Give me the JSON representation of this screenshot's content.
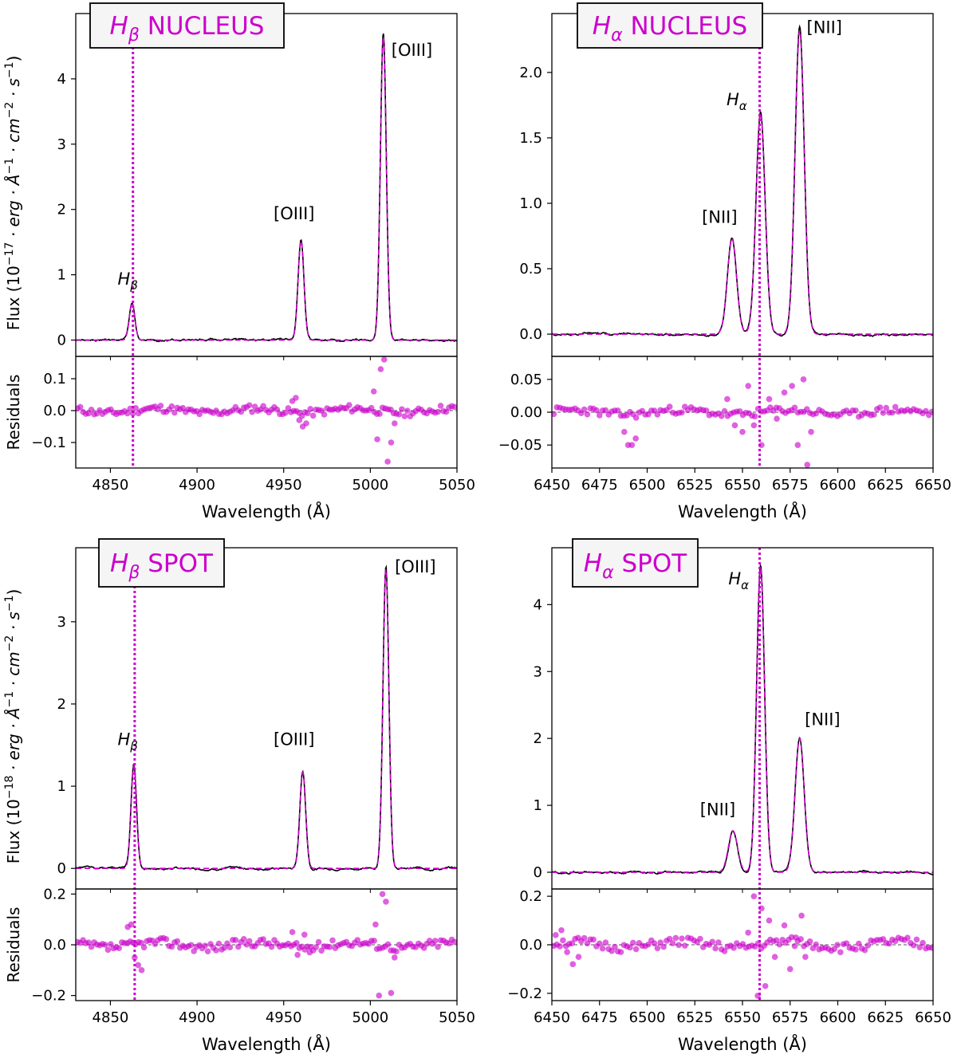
{
  "chart_data": [
    {
      "type": "line",
      "id": "hb-nucleus",
      "box_label": {
        "line": "H",
        "sub": "β",
        "rest": " NUCLEUS"
      },
      "ylabel": {
        "prefix": "Flux (10",
        "exp1": "−17",
        "mid": " · erg · Å",
        "exp2": "−1",
        "mid2": " · cm",
        "exp3": "−2",
        "mid3": " · s",
        "exp4": "−1",
        "suffix": ")"
      },
      "xlabel": "Wavelength (Å)",
      "residual_ylabel": "Residuals",
      "xlim": [
        4830,
        5050
      ],
      "ylim": [
        -0.25,
        5.0
      ],
      "res_ylim": [
        -0.18,
        0.17
      ],
      "xticks": [
        4850,
        4900,
        4950,
        5000,
        5050
      ],
      "yticks": [
        0,
        1,
        2,
        3,
        4
      ],
      "res_yticks": [
        -0.1,
        0.0,
        0.1
      ],
      "ref_line": 4863,
      "lines": [
        {
          "center": 4862.5,
          "amp": 0.57,
          "sigma": 1.6
        },
        {
          "center": 4960,
          "amp": 1.52,
          "sigma": 1.7
        },
        {
          "center": 5007.5,
          "amp": 4.65,
          "sigma": 1.7
        }
      ],
      "labels": [
        {
          "text": "H",
          "sub": "β",
          "x": 4860,
          "y": 0.85
        },
        {
          "text": "[OIII]",
          "sub": "",
          "x": 4956,
          "y": 1.85
        },
        {
          "text": "[OIII]",
          "sub": "",
          "x": 5024,
          "y": 4.35
        }
      ],
      "residuals": {
        "seed": 11,
        "noise": 0.012,
        "spikes": [
          [
            4955,
            0.03
          ],
          [
            4957,
            0.04
          ],
          [
            4959,
            -0.03
          ],
          [
            4961,
            -0.05
          ],
          [
            4963,
            -0.04
          ],
          [
            5002,
            0.06
          ],
          [
            5004,
            -0.09
          ],
          [
            5006,
            0.13
          ],
          [
            5008,
            0.16
          ],
          [
            5010,
            -0.16
          ],
          [
            5012,
            -0.1
          ],
          [
            5014,
            -0.04
          ]
        ]
      }
    },
    {
      "type": "line",
      "id": "ha-nucleus",
      "box_label": {
        "line": "H",
        "sub": "α",
        "rest": " NUCLEUS"
      },
      "ylabel": null,
      "xlabel": "Wavelength (Å)",
      "residual_ylabel": "",
      "xlim": [
        6450,
        6650
      ],
      "ylim": [
        -0.17,
        2.45
      ],
      "res_ylim": [
        -0.085,
        0.085
      ],
      "xticks": [
        6450,
        6475,
        6500,
        6525,
        6550,
        6575,
        6600,
        6625,
        6650
      ],
      "yticks": [
        0.0,
        0.5,
        1.0,
        1.5,
        2.0
      ],
      "res_yticks": [
        -0.05,
        0.0,
        0.05
      ],
      "ref_line": 6559,
      "lines": [
        {
          "center": 6544.5,
          "amp": 0.73,
          "sigma": 2.4
        },
        {
          "center": 6559.5,
          "amp": 1.68,
          "sigma": 2.4
        },
        {
          "center": 6580,
          "amp": 2.32,
          "sigma": 2.4
        }
      ],
      "labels": [
        {
          "text": "[NII]",
          "sub": "",
          "x": 6538,
          "y": 0.85
        },
        {
          "text": "H",
          "sub": "α",
          "x": 6547,
          "y": 1.75
        },
        {
          "text": "[NII]",
          "sub": "",
          "x": 6593,
          "y": 2.3
        }
      ],
      "residuals": {
        "seed": 23,
        "noise": 0.006,
        "spikes": [
          [
            6488,
            -0.03
          ],
          [
            6490,
            -0.05
          ],
          [
            6492,
            -0.05
          ],
          [
            6494,
            -0.04
          ],
          [
            6542,
            0.02
          ],
          [
            6546,
            -0.02
          ],
          [
            6550,
            -0.03
          ],
          [
            6553,
            0.04
          ],
          [
            6556,
            -0.02
          ],
          [
            6560,
            -0.05
          ],
          [
            6564,
            0.02
          ],
          [
            6568,
            -0.01
          ],
          [
            6572,
            0.03
          ],
          [
            6576,
            0.04
          ],
          [
            6579,
            -0.05
          ],
          [
            6582,
            0.05
          ],
          [
            6584,
            -0.08
          ],
          [
            6586,
            -0.03
          ]
        ]
      }
    },
    {
      "type": "line",
      "id": "hb-spot",
      "box_label": {
        "line": "H",
        "sub": "β",
        "rest": " SPOT"
      },
      "ylabel": {
        "prefix": "Flux (10",
        "exp1": "−18",
        "mid": " · erg · Å",
        "exp2": "−1",
        "mid2": " · cm",
        "exp3": "−2",
        "mid3": " · s",
        "exp4": "−1",
        "suffix": ")"
      },
      "xlabel": "Wavelength (Å)",
      "residual_ylabel": "Residuals",
      "xlim": [
        4830,
        5050
      ],
      "ylim": [
        -0.25,
        3.9
      ],
      "res_ylim": [
        -0.22,
        0.22
      ],
      "xticks": [
        4850,
        4900,
        4950,
        5000,
        5050
      ],
      "yticks": [
        0,
        1,
        2,
        3
      ],
      "res_yticks": [
        -0.2,
        0.0,
        0.2
      ],
      "ref_line": 4864,
      "lines": [
        {
          "center": 4863.5,
          "amp": 1.25,
          "sigma": 1.6
        },
        {
          "center": 4961,
          "amp": 1.17,
          "sigma": 1.7
        },
        {
          "center": 5009,
          "amp": 3.65,
          "sigma": 1.7
        }
      ],
      "labels": [
        {
          "text": "H",
          "sub": "β",
          "x": 4860,
          "y": 1.5
        },
        {
          "text": "[OIII]",
          "sub": "",
          "x": 4956,
          "y": 1.5
        },
        {
          "text": "[OIII]",
          "sub": "",
          "x": 5026,
          "y": 3.6
        }
      ],
      "residuals": {
        "seed": 37,
        "noise": 0.018,
        "spikes": [
          [
            4860,
            0.07
          ],
          [
            4862,
            0.08
          ],
          [
            4864,
            -0.05
          ],
          [
            4866,
            -0.08
          ],
          [
            4868,
            -0.1
          ],
          [
            4955,
            0.05
          ],
          [
            4958,
            -0.04
          ],
          [
            4962,
            0.04
          ],
          [
            4965,
            -0.03
          ],
          [
            5003,
            0.08
          ],
          [
            5005,
            -0.2
          ],
          [
            5007,
            0.2
          ],
          [
            5009,
            0.17
          ],
          [
            5012,
            -0.19
          ],
          [
            5014,
            -0.05
          ]
        ]
      }
    },
    {
      "type": "line",
      "id": "ha-spot",
      "box_label": {
        "line": "H",
        "sub": "α",
        "rest": " SPOT"
      },
      "ylabel": null,
      "xlabel": "Wavelength (Å)",
      "residual_ylabel": "",
      "xlim": [
        6450,
        6650
      ],
      "ylim": [
        -0.25,
        4.85
      ],
      "res_ylim": [
        -0.23,
        0.23
      ],
      "xticks": [
        6450,
        6475,
        6500,
        6525,
        6550,
        6575,
        6600,
        6625,
        6650
      ],
      "yticks": [
        0,
        1,
        2,
        3,
        4
      ],
      "res_yticks": [
        -0.2,
        0.0,
        0.2
      ],
      "ref_line": 6559,
      "lines": [
        {
          "center": 6545,
          "amp": 0.62,
          "sigma": 2.4
        },
        {
          "center": 6559.5,
          "amp": 4.55,
          "sigma": 2.1
        },
        {
          "center": 6580,
          "amp": 2.0,
          "sigma": 2.4
        }
      ],
      "labels": [
        {
          "text": "[NII]",
          "sub": "",
          "x": 6537,
          "y": 0.85
        },
        {
          "text": "H",
          "sub": "α",
          "x": 6548,
          "y": 4.3
        },
        {
          "text": "[NII]",
          "sub": "",
          "x": 6592,
          "y": 2.2
        }
      ],
      "residuals": {
        "seed": 51,
        "noise": 0.02,
        "spikes": [
          [
            6452,
            0.04
          ],
          [
            6455,
            0.06
          ],
          [
            6458,
            -0.03
          ],
          [
            6461,
            -0.08
          ],
          [
            6464,
            -0.05
          ],
          [
            6553,
            0.05
          ],
          [
            6556,
            0.2
          ],
          [
            6558,
            -0.21
          ],
          [
            6560,
            0.15
          ],
          [
            6562,
            -0.17
          ],
          [
            6564,
            0.1
          ],
          [
            6567,
            -0.05
          ],
          [
            6572,
            0.08
          ],
          [
            6575,
            -0.1
          ],
          [
            6578,
            0.03
          ],
          [
            6581,
            0.12
          ],
          [
            6583,
            -0.05
          ]
        ]
      }
    }
  ]
}
